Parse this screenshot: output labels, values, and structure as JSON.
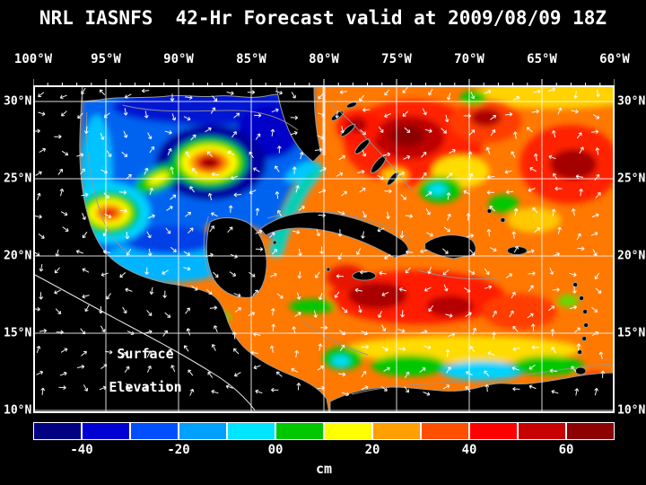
{
  "header": {
    "title": "NRL IASNFS  42-Hr Forecast valid at 2009/08/09 18Z"
  },
  "map": {
    "lon_labels": [
      "100°W",
      "95°W",
      "90°W",
      "85°W",
      "80°W",
      "75°W",
      "70°W",
      "65°W",
      "60°W"
    ],
    "lat_labels_left": [
      "30°N",
      "25°N",
      "20°N",
      "15°N",
      "10°N"
    ],
    "lat_labels_right": [
      "30°N",
      "25°N",
      "20°N",
      "15°N",
      "10°N"
    ],
    "annotation_line1": "Surface",
    "annotation_line2": "Elevation"
  },
  "colorbar": {
    "tick_labels": [
      "-40",
      "-20",
      "00",
      "20",
      "40",
      "60"
    ],
    "unit": "cm",
    "colors": [
      "#000082",
      "#0000d2",
      "#0050ff",
      "#00a0ff",
      "#00e6ff",
      "#00c800",
      "#ffff00",
      "#ffa000",
      "#ff5000",
      "#ff0000",
      "#c80000",
      "#8c0000"
    ]
  },
  "colors": {
    "background": "#000000",
    "gridlines": "#ffffff",
    "coastline": "#969696",
    "vectors": "#ffffff"
  },
  "chart_data": {
    "type": "heatmap",
    "title": "NRL IASNFS 42-Hr Forecast valid at 2009/08/09 18Z",
    "variable": "Surface Elevation",
    "unit": "cm",
    "colorbar_ticks": [
      -40,
      -20,
      0,
      20,
      40,
      60
    ],
    "value_range_estimate": [
      -50,
      70
    ],
    "x_axis_deg_west": [
      100,
      95,
      90,
      85,
      80,
      75,
      70,
      65,
      60
    ],
    "y_axis_deg_north": [
      30,
      25,
      20,
      15,
      10
    ],
    "grid": true,
    "overlays": [
      "current vector arrows",
      "coastlines",
      "5-degree graticule"
    ]
  }
}
